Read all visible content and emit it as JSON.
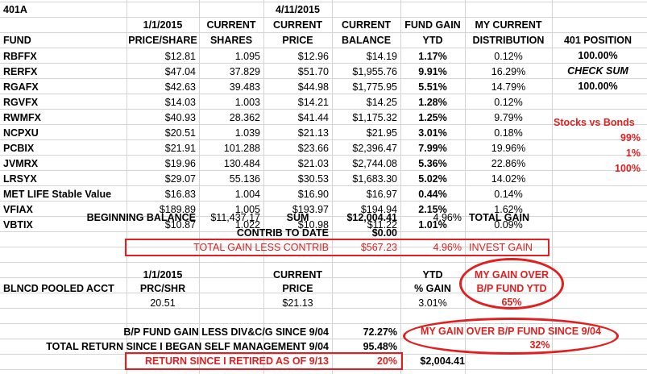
{
  "title": "401A",
  "headers": {
    "row1": {
      "price_date": "1/1/2015",
      "current1": "CURRENT",
      "current_date": "4/11/2015",
      "current2": "CURRENT",
      "fund_gain": "FUND GAIN",
      "my_current": "MY CURRENT"
    },
    "row2": {
      "fund": "FUND",
      "price_share": "PRICE/SHARE",
      "shares": "SHARES",
      "price": "PRICE",
      "balance": "BALANCE",
      "ytd": "YTD",
      "distribution": "DISTRIBUTION",
      "position": "401 POSITION"
    }
  },
  "funds": [
    {
      "fund": "RBFFX",
      "price_share": "$12.81",
      "shares": "1.095",
      "price": "$12.96",
      "balance": "$14.19",
      "ytd": "1.17%",
      "dist": "0.12%"
    },
    {
      "fund": "RERFX",
      "price_share": "$47.04",
      "shares": "37.829",
      "price": "$51.70",
      "balance": "$1,955.76",
      "ytd": "9.91%",
      "dist": "16.29%"
    },
    {
      "fund": "RGAFX",
      "price_share": "$42.63",
      "shares": "39.483",
      "price": "$44.98",
      "balance": "$1,775.95",
      "ytd": "5.51%",
      "dist": "14.79%"
    },
    {
      "fund": "RGVFX",
      "price_share": "$14.03",
      "shares": "1.003",
      "price": "$14.21",
      "balance": "$14.25",
      "ytd": "1.28%",
      "dist": "0.12%"
    },
    {
      "fund": "RWMFX",
      "price_share": "$40.93",
      "shares": "28.362",
      "price": "$41.44",
      "balance": "$1,175.32",
      "ytd": "1.25%",
      "dist": "9.79%"
    },
    {
      "fund": "NCPXU",
      "price_share": "$20.51",
      "shares": "1.039",
      "price": "$21.13",
      "balance": "$21.95",
      "ytd": "3.01%",
      "dist": "0.18%"
    },
    {
      "fund": "PCBIX",
      "price_share": "$21.91",
      "shares": "101.288",
      "price": "$23.66",
      "balance": "$2,396.47",
      "ytd": "7.99%",
      "dist": "19.96%"
    },
    {
      "fund": "JVMRX",
      "price_share": "$19.96",
      "shares": "130.484",
      "price": "$21.03",
      "balance": "$2,744.08",
      "ytd": "5.36%",
      "dist": "22.86%"
    },
    {
      "fund": "LRSYX",
      "price_share": "$29.07",
      "shares": "55.136",
      "price": "$30.53",
      "balance": "$1,683.30",
      "ytd": "5.02%",
      "dist": "14.02%"
    },
    {
      "fund": "MET LIFE Stable Value",
      "price_share": "$16.83",
      "shares": "1.004",
      "price": "$16.90",
      "balance": "$16.97",
      "ytd": "0.44%",
      "dist": "0.14%"
    },
    {
      "fund": "VFIAX",
      "price_share": "$189.89",
      "shares": "1.005",
      "price": "$193.97",
      "balance": "$194.94",
      "ytd": "2.15%",
      "dist": "1.62%"
    },
    {
      "fund": "VBTIX",
      "price_share": "$10.87",
      "shares": "1.022",
      "price": "$10.98",
      "balance": "$11.22",
      "ytd": "1.01%",
      "dist": "0.09%"
    }
  ],
  "position_col": {
    "pct1": "100.00%",
    "check_sum": "CHECK SUM",
    "pct2": "100.00%",
    "stocks_vs_bonds": "Stocks vs Bonds",
    "pct_99": "99%",
    "pct_1": "1%",
    "pct_100": "100%"
  },
  "summary": {
    "beginning_balance_label": "BEGINNING BALANCE",
    "beginning_balance": "$11,437.17",
    "sum_label": "SUM",
    "sum": "$12,004.41",
    "sum_pct": "4.96%",
    "total_gain_label": "TOTAL GAIN",
    "contrib_label": "CONTRIB TO DATE",
    "contrib": "$0.00",
    "gain_less_contrib_label": "TOTAL GAIN LESS CONTRIB",
    "gain_less_contrib": "$567.23",
    "gain_less_contrib_pct": "4.96%",
    "invest_gain_label": "INVEST GAIN"
  },
  "pooled": {
    "date": "1/1/2015",
    "current": "CURRENT",
    "ytd": "YTD",
    "my_gain_over": "MY GAIN OVER",
    "label": "BLNCD POOLED ACCT",
    "prc_shr": "PRC/SHR",
    "price": "PRICE",
    "pct_gain": "% GAIN",
    "bp_fund_ytd": "B/P FUND YTD",
    "prc_value": "20.51",
    "price_value": "$21.13",
    "gain_value": "3.01%",
    "over_value": "65%"
  },
  "bottom": {
    "bp_label": "B/P FUND GAIN LESS DIV&C/G SINCE 9/04",
    "bp_value": "72.27%",
    "gain_over_label": "MY GAIN OVER  B/P FUND  SINCE 9/04",
    "total_return_label": "TOTAL RETURN SINCE I BEGAN SELF MANAGEMENT 9/04",
    "total_return_value": "95.48%",
    "gain_over_value": "32%",
    "retired_label": "RETURN SINCE I RETIRED AS OF 9/13",
    "retired_pct": "20%",
    "retired_amount": "$2,004.41"
  }
}
